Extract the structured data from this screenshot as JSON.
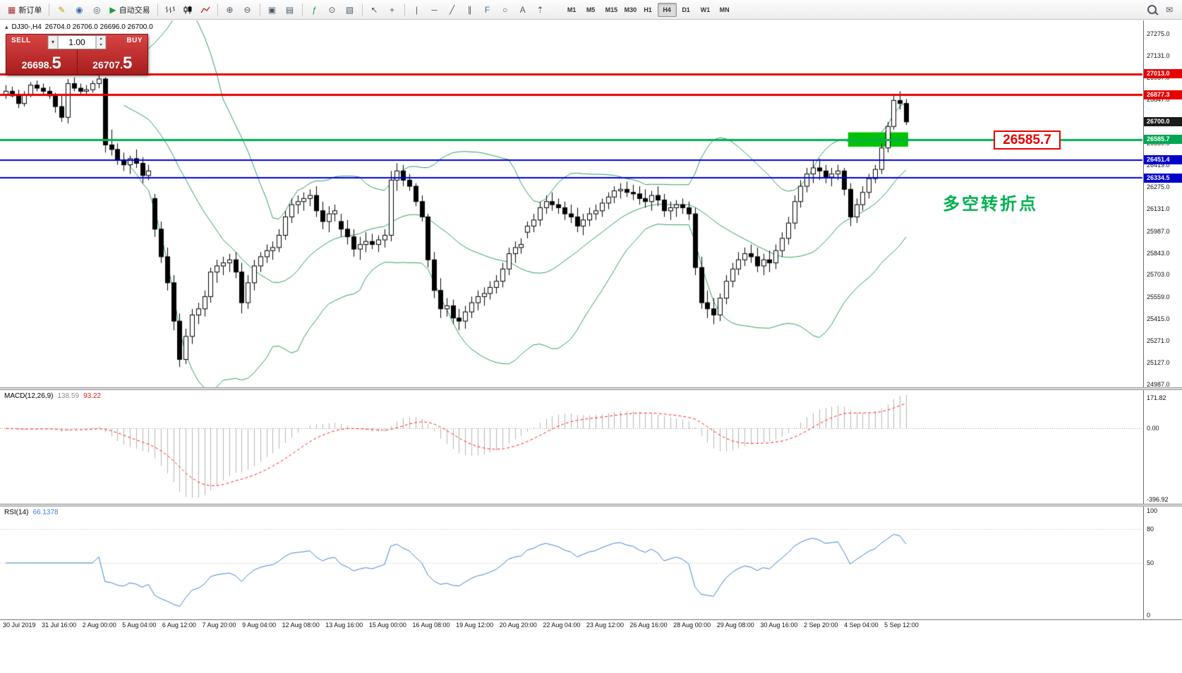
{
  "toolbar": {
    "new_order_label": "新订单",
    "autotrading_label": "自动交易",
    "timeframes": [
      "M1",
      "M5",
      "M15",
      "M30",
      "H1",
      "H4",
      "D1",
      "W1",
      "MN"
    ],
    "active_timeframe": "H4",
    "icons": {
      "new_order": "▦",
      "metaeditor": "✎",
      "profiles": "◉",
      "alerts": "◎",
      "autotrading": "▶",
      "zoom_in": "⊕",
      "zoom_out": "⊖",
      "tile_windows": "▣",
      "cascade_windows": "▤",
      "indicators": "ƒ",
      "periods": "⊙",
      "templates": "▧",
      "cursor": "↖",
      "crosshair": "+",
      "vertical_line": "|",
      "horizontal_line": "─",
      "trendline": "╱",
      "channel": "∥",
      "fibonacci": "F",
      "shapes": "○",
      "text": "A",
      "arrows": "⇡",
      "mail": "✉"
    }
  },
  "chart": {
    "symbol_label": "DJ30-,H4",
    "ohlc_label": "26704.0 26706.0 26696.0 26700.0",
    "trade_panel": {
      "sell_label": "SELL",
      "buy_label": "BUY",
      "volume": "1.00",
      "sell_price_main": "26698.",
      "sell_price_frac": "5",
      "buy_price_main": "26707.",
      "buy_price_frac": "5"
    },
    "annotations": {
      "price_label": "26585.7",
      "note": "多空转折点"
    },
    "rect_annotation": {
      "from": 136,
      "to": 145,
      "price_top": 26632,
      "price_bottom": 26538,
      "color": "#00c400"
    },
    "hlines": [
      {
        "price": 27013.0,
        "color": "#e60000",
        "width": 3
      },
      {
        "price": 26877.3,
        "color": "#e60000",
        "width": 3
      },
      {
        "price": 26585.7,
        "color": "#00b050",
        "width": 3
      },
      {
        "price": 26451.4,
        "color": "#0000e0",
        "width": 2
      },
      {
        "price": 26334.5,
        "color": "#0000e0",
        "width": 2
      }
    ],
    "axis_labels": [
      "27275.0",
      "27131.0",
      "26987.0",
      "26847.0",
      "26703.0",
      "26559.0",
      "26419.0",
      "26275.0",
      "26131.0",
      "25987.0",
      "25843.0",
      "25703.0",
      "25559.0",
      "25415.0",
      "25271.0",
      "25127.0",
      "24987.0"
    ],
    "axis_tags": [
      {
        "text": "27013.0",
        "color": "#e60000"
      },
      {
        "text": "26877.3",
        "color": "#e60000"
      },
      {
        "text": "26700.0",
        "color": "#1a1a1a"
      },
      {
        "text": "26585.7",
        "color": "#00a651"
      },
      {
        "text": "26451.4",
        "color": "#0000cc"
      },
      {
        "text": "26334.5",
        "color": "#0000cc"
      }
    ]
  },
  "chart_data": {
    "type": "candlestick",
    "symbol": "DJ30-",
    "period": "H4",
    "ohlc_current": [
      26704.0,
      26706.0,
      26696.0,
      26700.0
    ],
    "ylim": [
      24968,
      27362
    ],
    "x_labels": [
      "30 Jul 2019",
      "31 Jul 16:00",
      "2 Aug 00:00",
      "5 Aug 04:00",
      "6 Aug 12:00",
      "7 Aug 20:00",
      "9 Aug 04:00",
      "12 Aug 08:00",
      "13 Aug 16:00",
      "15 Aug 00:00",
      "16 Aug 08:00",
      "19 Aug 12:00",
      "20 Aug 20:00",
      "22 Aug 04:00",
      "23 Aug 12:00",
      "26 Aug 16:00",
      "28 Aug 00:00",
      "29 Aug 08:00",
      "30 Aug 16:00",
      "2 Sep 20:00",
      "4 Sep 04:00",
      "5 Sep 12:00"
    ],
    "overlays": [
      {
        "name": "Bollinger Bands",
        "period": 20,
        "deviation": 2,
        "color": "#2e9e5b"
      }
    ],
    "candles": [
      [
        26880,
        26940,
        26850,
        26900
      ],
      [
        26900,
        26930,
        26860,
        26870
      ],
      [
        26870,
        26910,
        26790,
        26820
      ],
      [
        26820,
        26900,
        26800,
        26880
      ],
      [
        26880,
        26960,
        26860,
        26940
      ],
      [
        26940,
        26970,
        26900,
        26920
      ],
      [
        26920,
        26950,
        26880,
        26900
      ],
      [
        26900,
        26930,
        26850,
        26870
      ],
      [
        26870,
        26890,
        26760,
        26800
      ],
      [
        26800,
        26870,
        26700,
        26730
      ],
      [
        26730,
        26980,
        26690,
        26950
      ],
      [
        26950,
        26990,
        26900,
        26920
      ],
      [
        26920,
        26950,
        26870,
        26900
      ],
      [
        26900,
        26940,
        26880,
        26910
      ],
      [
        26910,
        26970,
        26890,
        26950
      ],
      [
        26950,
        27010,
        26920,
        26980
      ],
      [
        26980,
        26990,
        26500,
        26550
      ],
      [
        26550,
        26650,
        26480,
        26520
      ],
      [
        26520,
        26560,
        26420,
        26450
      ],
      [
        26450,
        26500,
        26380,
        26420
      ],
      [
        26420,
        26480,
        26360,
        26460
      ],
      [
        26460,
        26520,
        26400,
        26430
      ],
      [
        26430,
        26470,
        26300,
        26350
      ],
      [
        26350,
        26420,
        26320,
        26380
      ],
      [
        26200,
        26230,
        25950,
        26000
      ],
      [
        26000,
        26050,
        25780,
        25820
      ],
      [
        25820,
        25880,
        25600,
        25650
      ],
      [
        25650,
        25700,
        25340,
        25400
      ],
      [
        25400,
        25450,
        25100,
        25150
      ],
      [
        25150,
        25350,
        25120,
        25300
      ],
      [
        25300,
        25480,
        25250,
        25440
      ],
      [
        25440,
        25520,
        25380,
        25480
      ],
      [
        25480,
        25600,
        25430,
        25560
      ],
      [
        25560,
        25750,
        25520,
        25720
      ],
      [
        25720,
        25800,
        25650,
        25760
      ],
      [
        25760,
        25820,
        25700,
        25780
      ],
      [
        25780,
        25840,
        25720,
        25800
      ],
      [
        25800,
        25850,
        25680,
        25720
      ],
      [
        25720,
        25780,
        25450,
        25520
      ],
      [
        25520,
        25700,
        25480,
        25650
      ],
      [
        25650,
        25800,
        25600,
        25760
      ],
      [
        25760,
        25850,
        25720,
        25820
      ],
      [
        25820,
        25900,
        25780,
        25860
      ],
      [
        25860,
        25920,
        25800,
        25880
      ],
      [
        25880,
        26000,
        25850,
        25960
      ],
      [
        25960,
        26120,
        25930,
        26080
      ],
      [
        26080,
        26200,
        26040,
        26160
      ],
      [
        26160,
        26220,
        26100,
        26180
      ],
      [
        26180,
        26240,
        26120,
        26200
      ],
      [
        26200,
        26260,
        26150,
        26220
      ],
      [
        26220,
        26280,
        26080,
        26120
      ],
      [
        26120,
        26180,
        26000,
        26050
      ],
      [
        26050,
        26150,
        25980,
        26100
      ],
      [
        26100,
        26160,
        26050,
        26120
      ],
      [
        26050,
        26100,
        25950,
        26000
      ],
      [
        26000,
        26060,
        25900,
        25950
      ],
      [
        25950,
        26000,
        25820,
        25870
      ],
      [
        25870,
        25950,
        25800,
        25900
      ],
      [
        25900,
        25980,
        25850,
        25920
      ],
      [
        25920,
        25970,
        25870,
        25900
      ],
      [
        25900,
        25960,
        25850,
        25930
      ],
      [
        25930,
        26000,
        25880,
        25960
      ],
      [
        25960,
        26380,
        25920,
        26320
      ],
      [
        26320,
        26430,
        26250,
        26380
      ],
      [
        26380,
        26420,
        26280,
        26320
      ],
      [
        26320,
        26360,
        26250,
        26280
      ],
      [
        26280,
        26300,
        26150,
        26180
      ],
      [
        26180,
        26220,
        26050,
        26080
      ],
      [
        26080,
        26100,
        25750,
        25800
      ],
      [
        25800,
        25850,
        25550,
        25600
      ],
      [
        25600,
        25680,
        25420,
        25480
      ],
      [
        25480,
        25550,
        25430,
        25500
      ],
      [
        25500,
        25540,
        25380,
        25420
      ],
      [
        25420,
        25480,
        25340,
        25400
      ],
      [
        25400,
        25500,
        25350,
        25460
      ],
      [
        25460,
        25560,
        25420,
        25520
      ],
      [
        25520,
        25600,
        25470,
        25560
      ],
      [
        25560,
        25620,
        25500,
        25580
      ],
      [
        25580,
        25660,
        25540,
        25620
      ],
      [
        25620,
        25700,
        25580,
        25660
      ],
      [
        25660,
        25780,
        25620,
        25740
      ],
      [
        25740,
        25880,
        25700,
        25840
      ],
      [
        25840,
        25920,
        25780,
        25880
      ],
      [
        25880,
        25940,
        25840,
        25900
      ],
      [
        25980,
        26050,
        25940,
        26020
      ],
      [
        26020,
        26100,
        25980,
        26060
      ],
      [
        26060,
        26180,
        26020,
        26140
      ],
      [
        26140,
        26220,
        26100,
        26180
      ],
      [
        26180,
        26240,
        26120,
        26160
      ],
      [
        26160,
        26200,
        26100,
        26140
      ],
      [
        26140,
        26180,
        26060,
        26100
      ],
      [
        26100,
        26160,
        26040,
        26080
      ],
      [
        26080,
        26140,
        25980,
        26020
      ],
      [
        26020,
        26100,
        25960,
        26060
      ],
      [
        26060,
        26140,
        26020,
        26100
      ],
      [
        26100,
        26160,
        26060,
        26120
      ],
      [
        26120,
        26200,
        26080,
        26170
      ],
      [
        26170,
        26240,
        26130,
        26210
      ],
      [
        26210,
        26280,
        26170,
        26250
      ],
      [
        26250,
        26300,
        26200,
        26260
      ],
      [
        26260,
        26310,
        26210,
        26240
      ],
      [
        26240,
        26290,
        26190,
        26230
      ],
      [
        26230,
        26280,
        26160,
        26200
      ],
      [
        26200,
        26260,
        26140,
        26180
      ],
      [
        26180,
        26250,
        26120,
        26220
      ],
      [
        26220,
        26280,
        26150,
        26190
      ],
      [
        26190,
        26230,
        26080,
        26120
      ],
      [
        26120,
        26180,
        26060,
        26140
      ],
      [
        26140,
        26190,
        26080,
        26160
      ],
      [
        26160,
        26200,
        26100,
        26140
      ],
      [
        26140,
        26180,
        26060,
        26100
      ],
      [
        26100,
        26140,
        25700,
        25750
      ],
      [
        25750,
        25820,
        25480,
        25520
      ],
      [
        25520,
        25600,
        25420,
        25480
      ],
      [
        25480,
        25550,
        25380,
        25440
      ],
      [
        25440,
        25580,
        25400,
        25550
      ],
      [
        25550,
        25700,
        25510,
        25660
      ],
      [
        25660,
        25780,
        25620,
        25740
      ],
      [
        25740,
        25850,
        25700,
        25800
      ],
      [
        25800,
        25880,
        25760,
        25840
      ],
      [
        25840,
        25900,
        25780,
        25820
      ],
      [
        25820,
        25880,
        25720,
        25760
      ],
      [
        25760,
        25840,
        25700,
        25800
      ],
      [
        25800,
        25860,
        25720,
        25780
      ],
      [
        25780,
        25900,
        25740,
        25860
      ],
      [
        25860,
        25980,
        25820,
        25940
      ],
      [
        25940,
        26080,
        25900,
        26040
      ],
      [
        26040,
        26220,
        26000,
        26180
      ],
      [
        26180,
        26320,
        26140,
        26280
      ],
      [
        26280,
        26400,
        26240,
        26360
      ],
      [
        26360,
        26450,
        26300,
        26400
      ],
      [
        26400,
        26460,
        26320,
        26380
      ],
      [
        26380,
        26420,
        26300,
        26340
      ],
      [
        26340,
        26400,
        26280,
        26360
      ],
      [
        26360,
        26420,
        26320,
        26380
      ],
      [
        26380,
        26400,
        26220,
        26260
      ],
      [
        26260,
        26300,
        26020,
        26080
      ],
      [
        26080,
        26200,
        26040,
        26160
      ],
      [
        26160,
        26280,
        26120,
        26240
      ],
      [
        26240,
        26360,
        26200,
        26330
      ],
      [
        26330,
        26420,
        26300,
        26390
      ],
      [
        26390,
        26560,
        26360,
        26530
      ],
      [
        26530,
        26700,
        26500,
        26670
      ],
      [
        26670,
        26870,
        26650,
        26840
      ],
      [
        26840,
        26900,
        26780,
        26820
      ],
      [
        26820,
        26850,
        26680,
        26700
      ]
    ]
  },
  "macd": {
    "label": "MACD(12,26,9)",
    "value_main": "138.59",
    "value_signal": "93.22",
    "axis": [
      "171.82",
      "0.00",
      "-396.92"
    ],
    "hist_color": "#b4b4b4",
    "signal_color": "#ff2020"
  },
  "rsi": {
    "label": "RSI(14)",
    "value": "66.1378",
    "axis": [
      "100",
      "80",
      "50",
      "0"
    ],
    "levels": [
      80,
      50
    ],
    "line_color": "#4080d0"
  },
  "colors": {
    "bull": "#ffffff",
    "bear": "#000000",
    "outline": "#000000",
    "bollinger": "#2e9e5b"
  }
}
